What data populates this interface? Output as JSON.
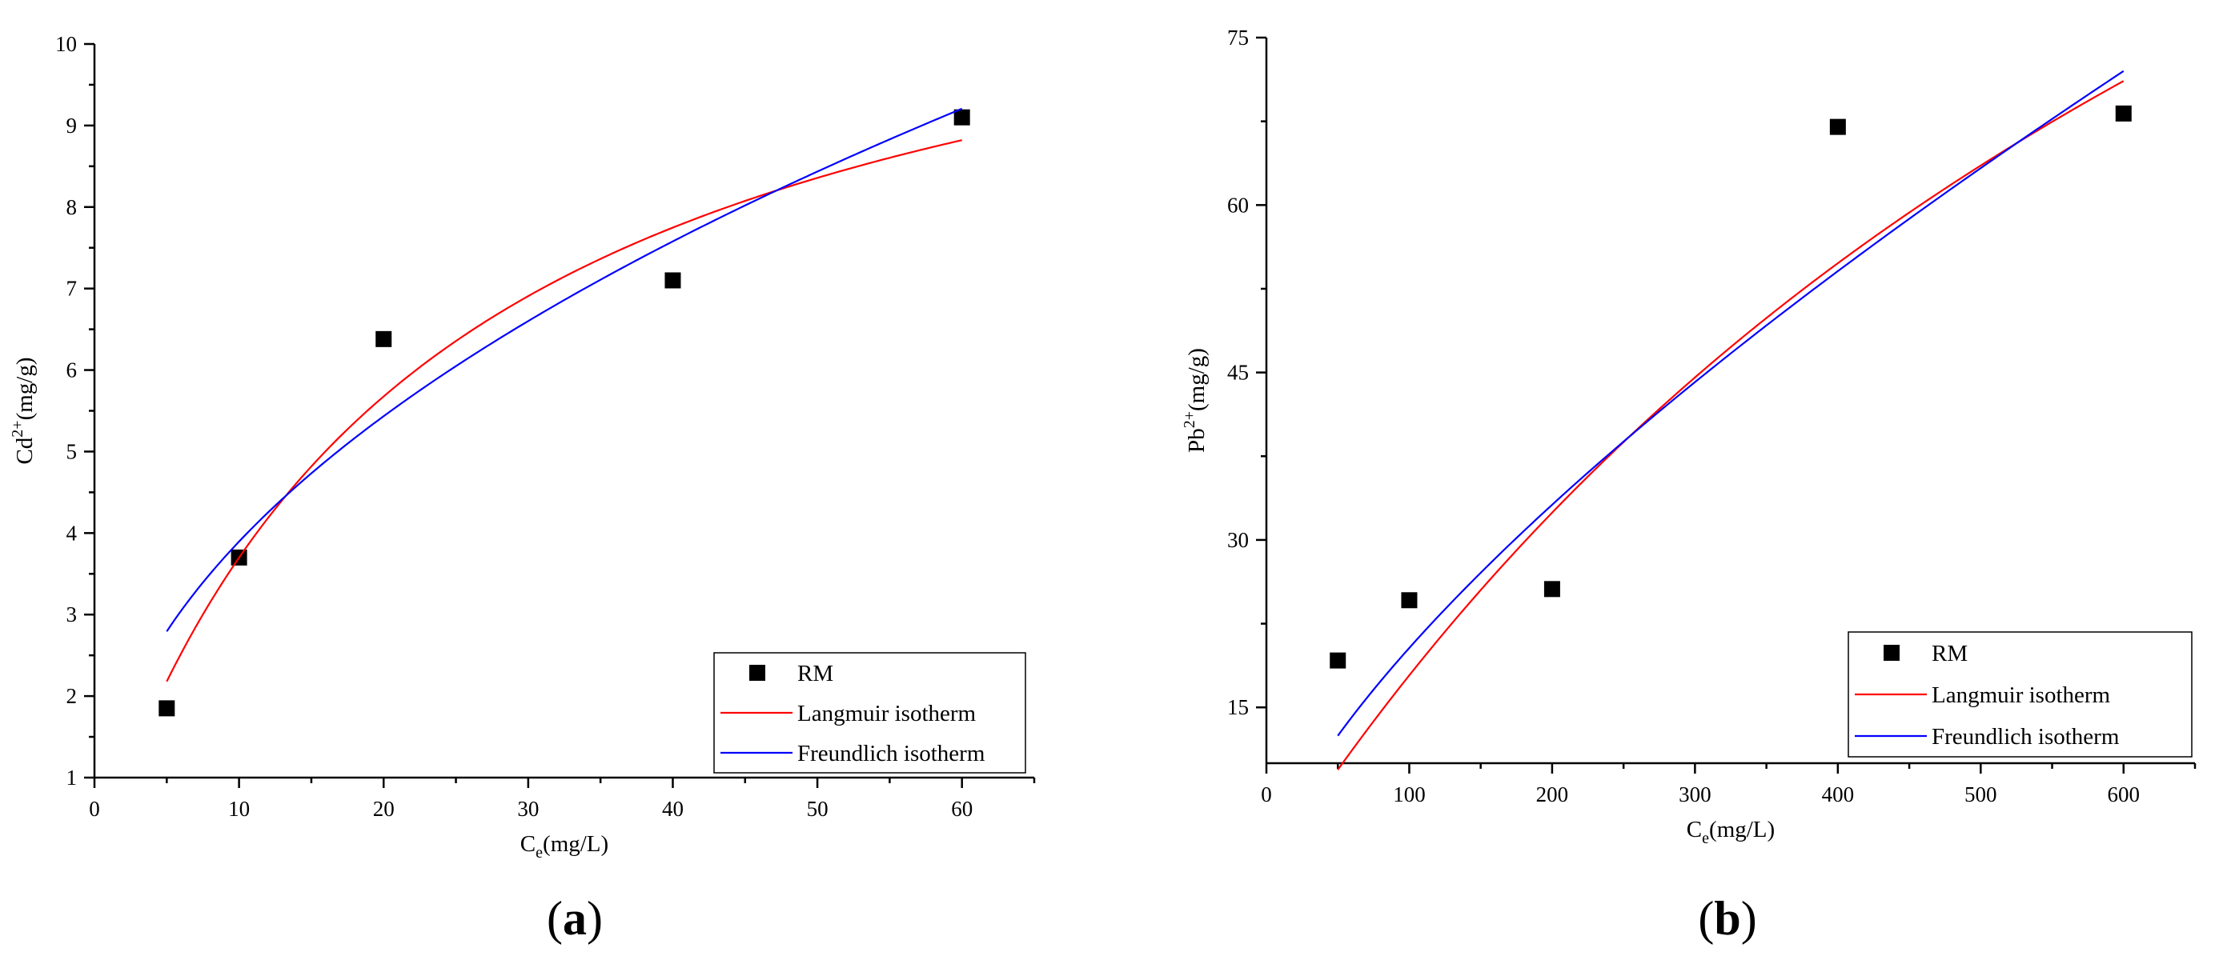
{
  "chart_data": [
    {
      "type": "scatter",
      "panel_label": "(a)",
      "panel_letter": "a",
      "xlabel_main": "C",
      "xlabel_sub": "e",
      "xlabel_tail": "(mg/L)",
      "ylabel_main": "Cd",
      "ylabel_sup": "2+",
      "ylabel_tail": "(mg/g)",
      "xlim": [
        0,
        65
      ],
      "ylim": [
        1,
        10
      ],
      "xticks": [
        0,
        10,
        20,
        30,
        40,
        50,
        60
      ],
      "yticks": [
        1,
        2,
        3,
        4,
        5,
        6,
        7,
        8,
        9,
        10
      ],
      "series": [
        {
          "name": "RM",
          "kind": "points",
          "color": "#000000",
          "x": [
            5,
            10,
            20,
            40,
            60
          ],
          "y": [
            1.85,
            3.7,
            6.38,
            7.1,
            9.1
          ]
        },
        {
          "name": "Langmuir isotherm",
          "kind": "langmuir",
          "color": "#ff0000",
          "qm": 12.2,
          "kl": 0.0435,
          "xrange": [
            5,
            60
          ]
        },
        {
          "name": "Freundlich isotherm",
          "kind": "freundlich",
          "color": "#0000ff",
          "kf": 1.29,
          "n_inv": 0.48,
          "xrange": [
            5,
            60
          ]
        }
      ],
      "legend_position": "bottom-right"
    },
    {
      "type": "scatter",
      "panel_label": "(b)",
      "panel_letter": "b",
      "xlabel_main": "C",
      "xlabel_sub": "e",
      "xlabel_tail": "(mg/L)",
      "ylabel_main": "Pb",
      "ylabel_sup": "2+",
      "ylabel_tail": "(mg/g)",
      "xlim": [
        0,
        650
      ],
      "ylim": [
        10,
        75
      ],
      "xticks": [
        0,
        100,
        200,
        300,
        400,
        500,
        600
      ],
      "yticks": [
        15,
        30,
        45,
        60,
        75
      ],
      "series": [
        {
          "name": "RM",
          "kind": "points",
          "color": "#000000",
          "x": [
            50,
            100,
            200,
            400,
            600
          ],
          "y": [
            19.2,
            24.6,
            25.6,
            67,
            68.2
          ]
        },
        {
          "name": "Langmuir isotherm",
          "kind": "langmuir",
          "color": "#ff0000",
          "qm": 176,
          "kl": 0.00113,
          "xrange": [
            50,
            600
          ]
        },
        {
          "name": "Freundlich isotherm",
          "kind": "freundlich",
          "color": "#0000ff",
          "kf": 0.787,
          "n_inv": 0.706,
          "xrange": [
            50,
            600
          ]
        }
      ],
      "legend_position": "bottom-right"
    }
  ]
}
